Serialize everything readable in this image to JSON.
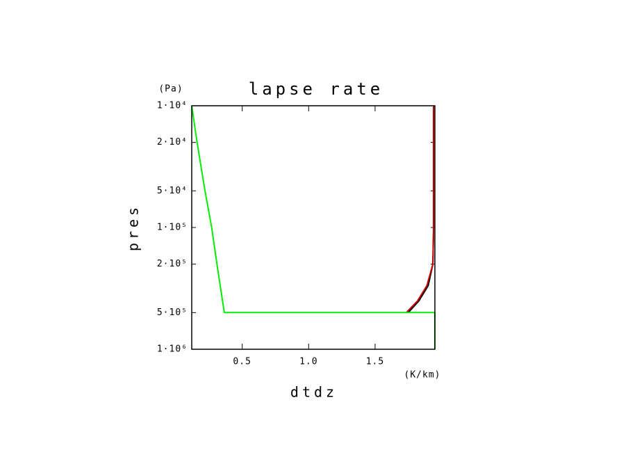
{
  "chart_data": {
    "type": "line",
    "title": "lapse rate",
    "x_label": "dtdz",
    "x_unit": "(K/km)",
    "y_label": "pres",
    "y_unit": "(Pa)",
    "xlim": [
      0.12,
      1.95
    ],
    "ylim": [
      10000,
      1000000
    ],
    "y_log": true,
    "y_inverted": true,
    "xticks": [
      0.5,
      {
        "value": 1,
        "label": "1.0"
      },
      1.5
    ],
    "yticks": [
      {
        "value": 10000,
        "label": "1·10⁴"
      },
      {
        "value": 20000,
        "label": "2·10⁴"
      },
      {
        "value": 50000,
        "label": "5·10⁴"
      },
      {
        "value": 100000,
        "label": "1·10⁵"
      },
      {
        "value": 200000,
        "label": "2·10⁵"
      },
      {
        "value": 500000,
        "label": "5·10⁵"
      },
      {
        "value": 1000000,
        "label": "1·10⁶"
      }
    ],
    "series": [
      {
        "color": "#000000",
        "x": [
          1.94,
          1.94,
          1.935,
          1.9,
          1.83,
          1.75
        ],
        "values": [
          10000,
          100000,
          200000,
          300000,
          400000,
          500000
        ]
      },
      {
        "color": "#cc0000",
        "x": [
          1.94,
          1.94,
          1.935,
          1.89,
          1.82,
          1.735
        ],
        "values": [
          10000,
          100000,
          200000,
          300000,
          400000,
          500000
        ]
      },
      {
        "color": "#00ee00",
        "x": [
          0.12,
          0.16,
          0.22,
          0.27,
          0.31,
          0.365,
          1.95,
          1.95
        ],
        "values": [
          10000,
          20000,
          50000,
          100000,
          200000,
          500000,
          500000,
          1000000
        ]
      }
    ]
  }
}
